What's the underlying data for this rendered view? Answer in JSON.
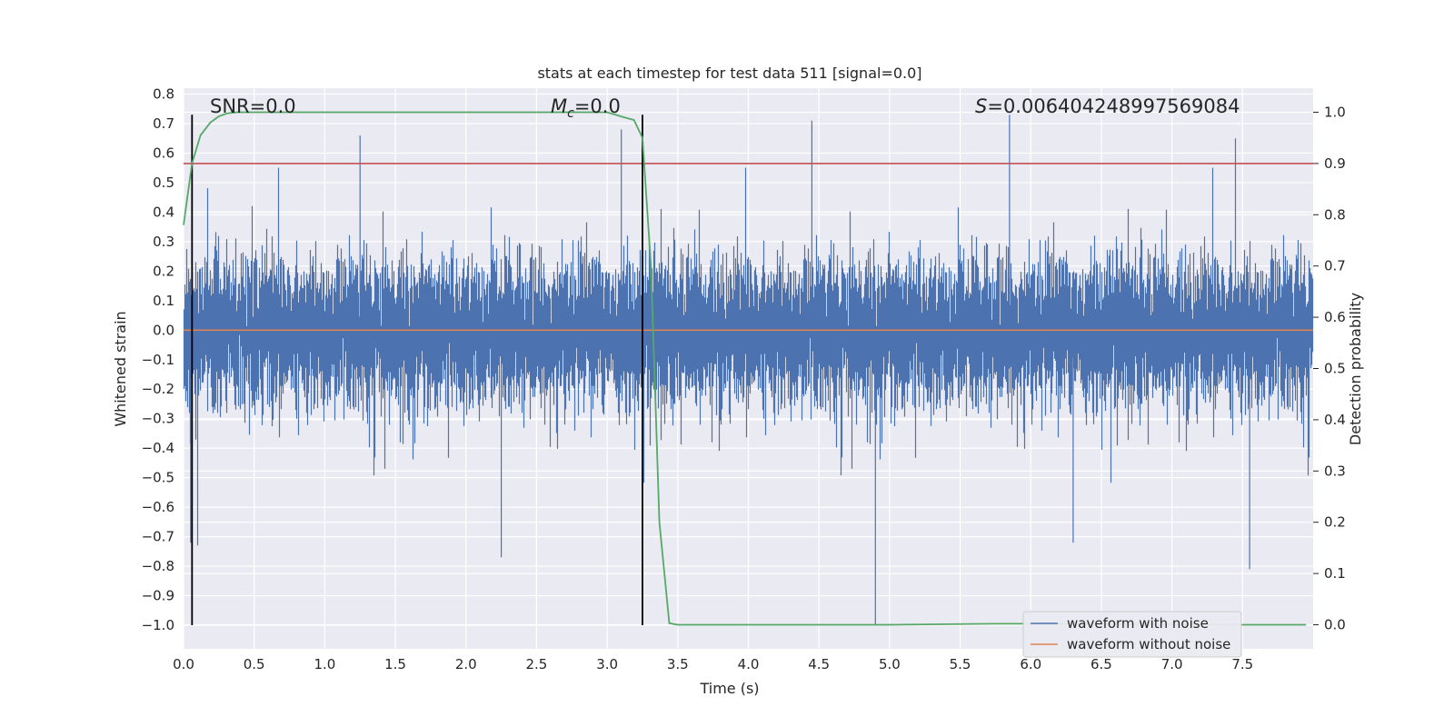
{
  "chart_data": {
    "type": "line",
    "title": "stats at each timestep for test data 511 [signal=0.0]",
    "xlabel": "Time (s)",
    "ylabel": "Whitened strain",
    "y2label": "Detection probability",
    "xlim": [
      0.0,
      8.0
    ],
    "ylim": [
      -1.08,
      0.82
    ],
    "y2lim": [
      -0.047,
      1.047
    ],
    "x_ticks": [
      0.0,
      0.5,
      1.0,
      1.5,
      2.0,
      2.5,
      3.0,
      3.5,
      4.0,
      4.5,
      5.0,
      5.5,
      6.0,
      6.5,
      7.0,
      7.5
    ],
    "x_tick_labels": [
      "0.0",
      "0.5",
      "1.0",
      "1.5",
      "2.0",
      "2.5",
      "3.0",
      "3.5",
      "4.0",
      "4.5",
      "5.0",
      "5.5",
      "6.0",
      "6.5",
      "7.0",
      "7.5"
    ],
    "y_ticks": [
      0.8,
      0.7,
      0.6,
      0.5,
      0.4,
      0.3,
      0.2,
      0.1,
      0.0,
      -0.1,
      -0.2,
      -0.3,
      -0.4,
      -0.5,
      -0.6,
      -0.7,
      -0.8,
      -0.9,
      -1.0
    ],
    "y_tick_labels": [
      "0.8",
      "0.7",
      "0.6",
      "0.5",
      "0.4",
      "0.3",
      "0.2",
      "0.1",
      "0.0",
      "−0.1",
      "−0.2",
      "−0.3",
      "−0.4",
      "−0.5",
      "−0.6",
      "−0.7",
      "−0.8",
      "−0.9",
      "−1.0"
    ],
    "y2_ticks": [
      1.0,
      0.9,
      0.8,
      0.7,
      0.6,
      0.5,
      0.4,
      0.3,
      0.2,
      0.1,
      0.0
    ],
    "y2_tick_labels": [
      "1.0",
      "0.9",
      "0.8",
      "0.7",
      "0.6",
      "0.5",
      "0.4",
      "0.3",
      "0.2",
      "0.1",
      "0.0"
    ],
    "annotations": {
      "snr": "SNR=0.0",
      "mc_symbol": "M",
      "mc_subscript": "c",
      "mc_value": "=0.0",
      "s_symbol": "S",
      "s_value": "=0.006404248997569084"
    },
    "vertical_lines": [
      0.06,
      3.25
    ],
    "vertical_line_range": [
      -1.0,
      0.73
    ],
    "threshold": {
      "axis": "y2",
      "value": 0.9,
      "color": "#c44e52"
    },
    "series": [
      {
        "name": "waveform with noise",
        "color": "#4c72b0",
        "axis": "y",
        "kind": "noise",
        "t_start": 0.0,
        "t_end": 8.0,
        "samples": 16384,
        "band_std": 0.12,
        "approx_max": 0.73,
        "approx_min": -1.0
      },
      {
        "name": "waveform without noise",
        "color": "#dd8452",
        "axis": "y",
        "x": [
          0.0,
          8.0
        ],
        "y": [
          0.0,
          0.0
        ]
      },
      {
        "name": "detection probability",
        "color": "#55a868",
        "axis": "y2",
        "x": [
          0.0,
          0.06,
          0.12,
          0.19,
          0.25,
          0.31,
          0.38,
          0.5,
          1.0,
          2.0,
          3.0,
          3.12,
          3.19,
          3.25,
          3.31,
          3.34,
          3.37,
          3.44,
          3.5,
          4.0,
          5.0,
          5.75,
          6.0,
          7.0,
          7.5,
          7.95
        ],
        "y": [
          0.78,
          0.9,
          0.955,
          0.98,
          0.992,
          0.998,
          1.0,
          1.0,
          1.0,
          1.0,
          1.0,
          0.99,
          0.985,
          0.95,
          0.7,
          0.45,
          0.2,
          0.003,
          0.0,
          0.0,
          0.0,
          0.002,
          0.002,
          0.001,
          0.0,
          0.0
        ]
      }
    ],
    "legend": {
      "placement": "lower-right",
      "entries": [
        {
          "label": "waveform with noise",
          "color": "#4c72b0"
        },
        {
          "label": "waveform without noise",
          "color": "#dd8452"
        }
      ]
    },
    "background": "#eaeaf2",
    "grid": true
  }
}
